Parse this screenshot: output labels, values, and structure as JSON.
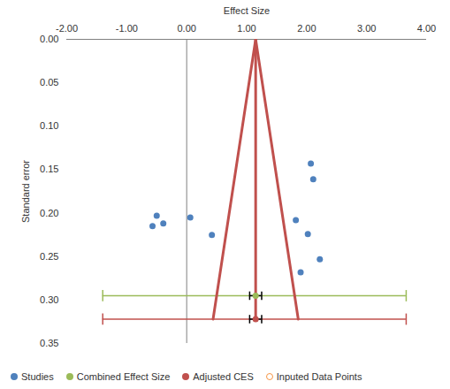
{
  "chart_data": {
    "type": "scatter",
    "x_label": "Effect Size",
    "y_label": "Standard error",
    "xlim": [
      -2,
      4
    ],
    "xticks": [
      {
        "value": -2,
        "label": "-2.00"
      },
      {
        "value": -1,
        "label": "-1.00"
      },
      {
        "value": 0,
        "label": "0.00"
      },
      {
        "value": 1,
        "label": "1.00"
      },
      {
        "value": 2,
        "label": "2.00"
      },
      {
        "value": 3,
        "label": "3.00"
      },
      {
        "value": 4,
        "label": "4.00"
      }
    ],
    "ylim": [
      0,
      0.35
    ],
    "yticks": [
      {
        "value": 0,
        "label": "0.00"
      },
      0.05,
      {
        "value": 0.1,
        "label": "0.10"
      },
      0.15,
      {
        "value": 0.2,
        "label": "0.20"
      },
      0.25,
      {
        "value": 0.3,
        "label": "0.30"
      },
      0.35
    ],
    "series": [
      {
        "name": "Studies",
        "color": "#4f81bd",
        "marker": "circle",
        "x": [
          2.07,
          2.11,
          1.82,
          2.02,
          2.22,
          1.9,
          0.06,
          -0.5,
          -0.57,
          -0.39,
          0.42
        ],
        "values": [
          0.143,
          0.161,
          0.208,
          0.224,
          0.253,
          0.268,
          0.205,
          0.203,
          0.215,
          0.212,
          0.225
        ]
      },
      {
        "name": "Combined Effect Size",
        "color": "#9bbb59",
        "marker": "circle",
        "x": [
          1.15
        ],
        "values": [
          0.295
        ],
        "error_x": [
          [
            1.05,
            1.25
          ]
        ],
        "interval_x": [
          [
            -1.4,
            3.66
          ]
        ]
      },
      {
        "name": "Adjusted CES",
        "color": "#c0504d",
        "marker": "circle",
        "x": [
          1.15
        ],
        "values": [
          0.322
        ],
        "error_x": [
          [
            1.05,
            1.25
          ]
        ],
        "interval_x": [
          [
            -1.4,
            3.66
          ]
        ],
        "funnel": {
          "x": [
            0.44,
            1.15,
            1.86
          ],
          "values": [
            0.322,
            0,
            0.322
          ]
        }
      },
      {
        "name": "Inputed Data Points",
        "color": "#f79646",
        "marker": "open_circle",
        "x": [],
        "values": []
      }
    ]
  }
}
